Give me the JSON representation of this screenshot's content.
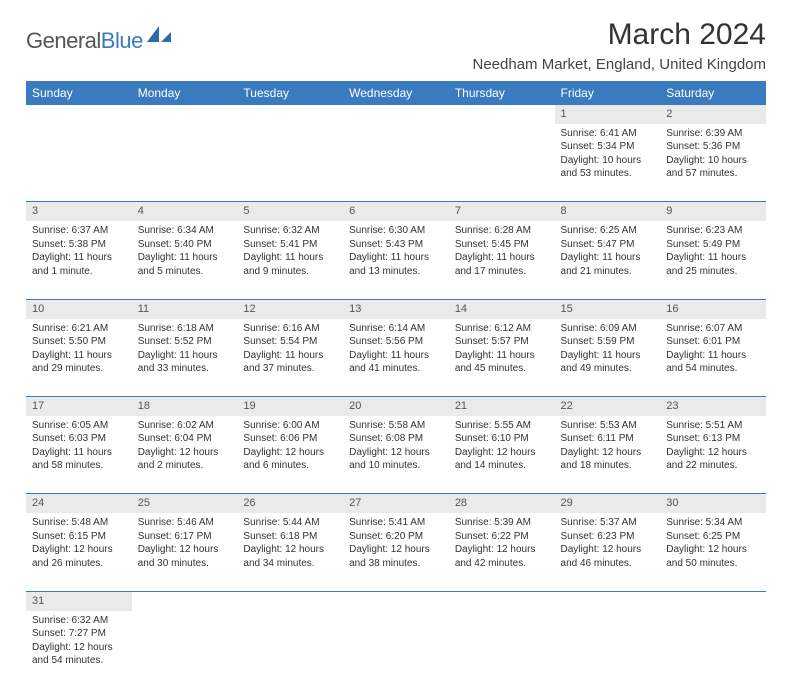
{
  "logo": {
    "word1": "General",
    "word2": "Blue"
  },
  "title": "March 2024",
  "location": "Needham Market, England, United Kingdom",
  "colors": {
    "header_bg": "#3a7bbf",
    "header_text": "#ffffff",
    "daynum_bg": "#eaeaea",
    "row_divider": "#3a7bbf",
    "background": "#ffffff",
    "body_text": "#333333"
  },
  "typography": {
    "title_fontsize": 30,
    "location_fontsize": 15,
    "dayheader_fontsize": 12,
    "cell_fontsize": 10
  },
  "day_headers": [
    "Sunday",
    "Monday",
    "Tuesday",
    "Wednesday",
    "Thursday",
    "Friday",
    "Saturday"
  ],
  "weeks": [
    {
      "nums": [
        "",
        "",
        "",
        "",
        "",
        "1",
        "2"
      ],
      "cells": [
        null,
        null,
        null,
        null,
        null,
        {
          "sunrise": "6:41 AM",
          "sunset": "5:34 PM",
          "daylight": "10 hours and 53 minutes."
        },
        {
          "sunrise": "6:39 AM",
          "sunset": "5:36 PM",
          "daylight": "10 hours and 57 minutes."
        }
      ]
    },
    {
      "nums": [
        "3",
        "4",
        "5",
        "6",
        "7",
        "8",
        "9"
      ],
      "cells": [
        {
          "sunrise": "6:37 AM",
          "sunset": "5:38 PM",
          "daylight": "11 hours and 1 minute."
        },
        {
          "sunrise": "6:34 AM",
          "sunset": "5:40 PM",
          "daylight": "11 hours and 5 minutes."
        },
        {
          "sunrise": "6:32 AM",
          "sunset": "5:41 PM",
          "daylight": "11 hours and 9 minutes."
        },
        {
          "sunrise": "6:30 AM",
          "sunset": "5:43 PM",
          "daylight": "11 hours and 13 minutes."
        },
        {
          "sunrise": "6:28 AM",
          "sunset": "5:45 PM",
          "daylight": "11 hours and 17 minutes."
        },
        {
          "sunrise": "6:25 AM",
          "sunset": "5:47 PM",
          "daylight": "11 hours and 21 minutes."
        },
        {
          "sunrise": "6:23 AM",
          "sunset": "5:49 PM",
          "daylight": "11 hours and 25 minutes."
        }
      ]
    },
    {
      "nums": [
        "10",
        "11",
        "12",
        "13",
        "14",
        "15",
        "16"
      ],
      "cells": [
        {
          "sunrise": "6:21 AM",
          "sunset": "5:50 PM",
          "daylight": "11 hours and 29 minutes."
        },
        {
          "sunrise": "6:18 AM",
          "sunset": "5:52 PM",
          "daylight": "11 hours and 33 minutes."
        },
        {
          "sunrise": "6:16 AM",
          "sunset": "5:54 PM",
          "daylight": "11 hours and 37 minutes."
        },
        {
          "sunrise": "6:14 AM",
          "sunset": "5:56 PM",
          "daylight": "11 hours and 41 minutes."
        },
        {
          "sunrise": "6:12 AM",
          "sunset": "5:57 PM",
          "daylight": "11 hours and 45 minutes."
        },
        {
          "sunrise": "6:09 AM",
          "sunset": "5:59 PM",
          "daylight": "11 hours and 49 minutes."
        },
        {
          "sunrise": "6:07 AM",
          "sunset": "6:01 PM",
          "daylight": "11 hours and 54 minutes."
        }
      ]
    },
    {
      "nums": [
        "17",
        "18",
        "19",
        "20",
        "21",
        "22",
        "23"
      ],
      "cells": [
        {
          "sunrise": "6:05 AM",
          "sunset": "6:03 PM",
          "daylight": "11 hours and 58 minutes."
        },
        {
          "sunrise": "6:02 AM",
          "sunset": "6:04 PM",
          "daylight": "12 hours and 2 minutes."
        },
        {
          "sunrise": "6:00 AM",
          "sunset": "6:06 PM",
          "daylight": "12 hours and 6 minutes."
        },
        {
          "sunrise": "5:58 AM",
          "sunset": "6:08 PM",
          "daylight": "12 hours and 10 minutes."
        },
        {
          "sunrise": "5:55 AM",
          "sunset": "6:10 PM",
          "daylight": "12 hours and 14 minutes."
        },
        {
          "sunrise": "5:53 AM",
          "sunset": "6:11 PM",
          "daylight": "12 hours and 18 minutes."
        },
        {
          "sunrise": "5:51 AM",
          "sunset": "6:13 PM",
          "daylight": "12 hours and 22 minutes."
        }
      ]
    },
    {
      "nums": [
        "24",
        "25",
        "26",
        "27",
        "28",
        "29",
        "30"
      ],
      "cells": [
        {
          "sunrise": "5:48 AM",
          "sunset": "6:15 PM",
          "daylight": "12 hours and 26 minutes."
        },
        {
          "sunrise": "5:46 AM",
          "sunset": "6:17 PM",
          "daylight": "12 hours and 30 minutes."
        },
        {
          "sunrise": "5:44 AM",
          "sunset": "6:18 PM",
          "daylight": "12 hours and 34 minutes."
        },
        {
          "sunrise": "5:41 AM",
          "sunset": "6:20 PM",
          "daylight": "12 hours and 38 minutes."
        },
        {
          "sunrise": "5:39 AM",
          "sunset": "6:22 PM",
          "daylight": "12 hours and 42 minutes."
        },
        {
          "sunrise": "5:37 AM",
          "sunset": "6:23 PM",
          "daylight": "12 hours and 46 minutes."
        },
        {
          "sunrise": "5:34 AM",
          "sunset": "6:25 PM",
          "daylight": "12 hours and 50 minutes."
        }
      ]
    },
    {
      "nums": [
        "31",
        "",
        "",
        "",
        "",
        "",
        ""
      ],
      "cells": [
        {
          "sunrise": "6:32 AM",
          "sunset": "7:27 PM",
          "daylight": "12 hours and 54 minutes."
        },
        null,
        null,
        null,
        null,
        null,
        null
      ]
    }
  ],
  "labels": {
    "sunrise": "Sunrise:",
    "sunset": "Sunset:",
    "daylight": "Daylight:"
  }
}
